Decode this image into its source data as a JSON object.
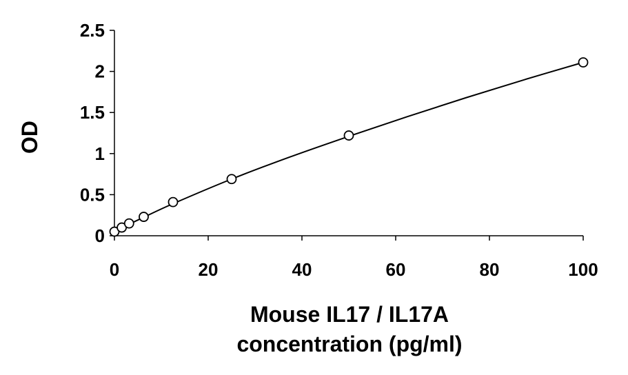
{
  "chart_data": {
    "type": "scatter",
    "title": "",
    "xlabel_lines": [
      "Mouse IL17 / IL17A",
      "concentration (pg/ml)"
    ],
    "ylabel": "OD",
    "xlim": [
      0,
      100
    ],
    "ylim": [
      0,
      2.5
    ],
    "x_ticks": [
      0,
      20,
      40,
      60,
      80,
      100
    ],
    "x_tick_labels": [
      "0",
      "20",
      "40",
      "60",
      "80",
      "100"
    ],
    "y_ticks": [
      0,
      0.5,
      1,
      1.5,
      2,
      2.5
    ],
    "y_tick_labels": [
      "0",
      "0.5",
      "1",
      "1.5",
      "2",
      "2.5"
    ],
    "grid": false,
    "legend": "none",
    "series": [
      {
        "marker": "open-circle",
        "x": [
          0,
          1.56,
          3.13,
          6.25,
          12.5,
          25,
          50,
          100
        ],
        "y": [
          0.05,
          0.1,
          0.15,
          0.23,
          0.41,
          0.69,
          1.22,
          2.11
        ]
      }
    ],
    "fit_curve": {
      "type": "smooth",
      "x": [
        0,
        1.56,
        3.13,
        6.25,
        12.5,
        25,
        37.5,
        50,
        62.5,
        75,
        87.5,
        100
      ],
      "y": [
        0.05,
        0.095,
        0.14,
        0.225,
        0.39,
        0.69,
        0.96,
        1.21,
        1.45,
        1.68,
        1.9,
        2.11
      ]
    },
    "colors": {
      "axis": "#000000",
      "marker": "#000000",
      "curve": "#000000"
    }
  }
}
